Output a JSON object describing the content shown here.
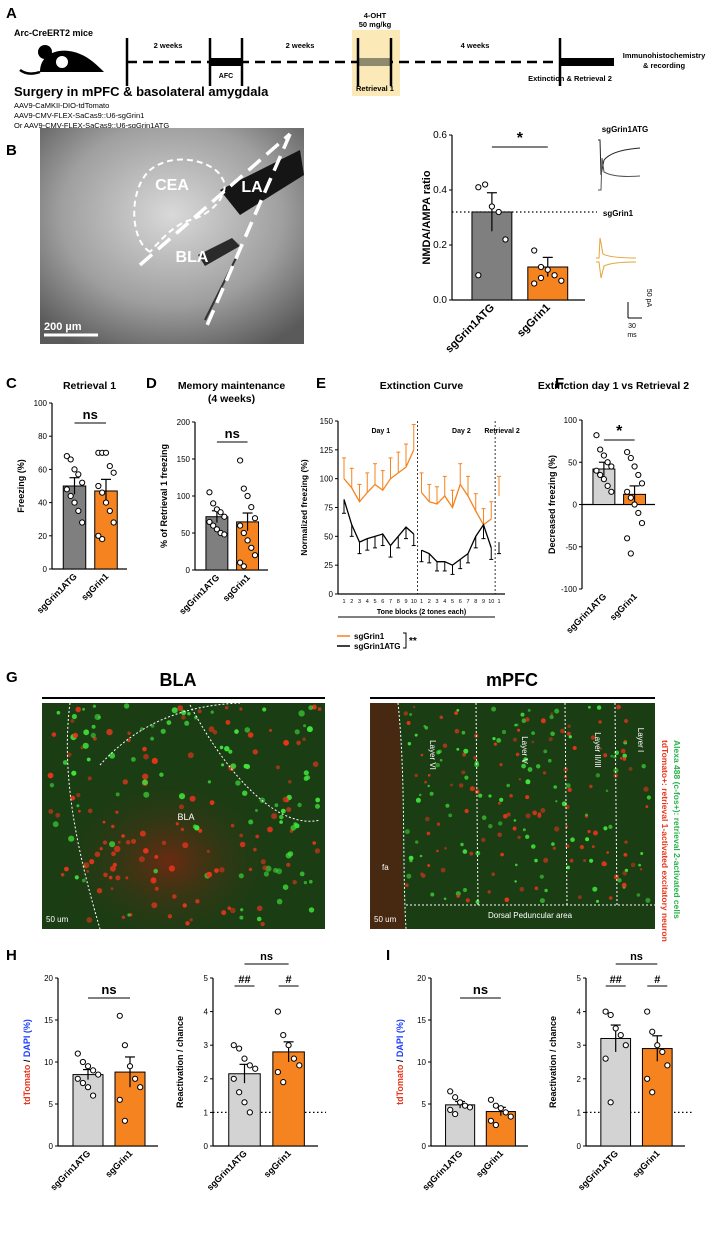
{
  "panel_letters": [
    "A",
    "B",
    "C",
    "D",
    "E",
    "F",
    "G",
    "H",
    "I"
  ],
  "A": {
    "mouse_label": "Arc-CreERT2 mice",
    "surgery_title": "Surgery in mPFC & basolateral amygdala",
    "viruses": [
      "AAV9-CaMKII-DIO-tdTomato",
      "AAV9-CMV-FLEX-SaCas9::U6-sgGrin1",
      "Or AAV9-CMV-FLEX-SaCas9::U6-sgGrin1ATG"
    ],
    "interval_1": "2 weeks",
    "interval_2": "2 weeks",
    "interval_3": "4 weeks",
    "afc": "AFC",
    "ohtt_line1": "4-OHT",
    "ohtt_line2": "50 mg/kg",
    "retrieval1": "Retrieval 1",
    "extinction": "Extinction & Retrieval 2",
    "ihc_line1": "Immunohistochemistry",
    "ihc_line2": "& recording",
    "highlight_color": "#fbe9b7"
  },
  "B": {
    "labels": [
      "CEA",
      "LA",
      "BLA"
    ],
    "scale": "200 µm",
    "trace_top_label": "sgGrin1ATG",
    "trace_bottom_label": "sgGrin1",
    "scalebar_y": "50 pA",
    "scalebar_x": "30",
    "scalebar_x_unit": "ms",
    "sig": "*"
  },
  "G": {
    "left_title": "BLA",
    "right_title": "mPFC",
    "left_region": "BLA",
    "layers": [
      "Layer VI",
      "Layer V",
      "Layer II/III",
      "Layer I"
    ],
    "fa": "fa",
    "dorsal": "Dorsal Peduncular area",
    "scale_left": "50 um",
    "scale_right": "50 um",
    "legend_red": "tdTomato+: retrieval 1-activated excitatory neuron",
    "legend_green": "Alexa 488 (c-fos+): retrieval 2-activated cells"
  },
  "groups": [
    "sgGrin1ATG",
    "sgGrin1"
  ],
  "colors": {
    "atg": "#7f7f7f",
    "atg_light": "#d3d3d3",
    "grin1": "#f5831f",
    "bla_bg": "#1b3d14",
    "red_cell": "#e8341c",
    "green_cell": "#3fe33a"
  },
  "chart_data": [
    {
      "panel": "B",
      "type": "bar",
      "title": "",
      "ylabel": "NMDA/AMPA ratio",
      "categories": [
        "sgGrin1ATG",
        "sgGrin1"
      ],
      "values": [
        0.32,
        0.12
      ],
      "errors": [
        0.07,
        0.035
      ],
      "ylim": [
        0,
        0.6
      ],
      "yticks": [
        "0.0",
        "0.2",
        "0.4",
        "0.6"
      ],
      "sig": "*",
      "chance_line": 0.32,
      "points": [
        [
          0.41,
          0.42,
          0.34,
          0.32,
          0.22,
          0.09
        ],
        [
          0.18,
          0.12,
          0.11,
          0.09,
          0.07,
          0.06,
          0.08
        ]
      ]
    },
    {
      "panel": "C",
      "type": "bar",
      "title": "Retrieval 1",
      "ylabel": "Freezing (%)",
      "categories": [
        "sgGrin1ATG",
        "sgGrin1"
      ],
      "values": [
        50,
        47
      ],
      "errors": [
        5,
        7
      ],
      "ylim": [
        0,
        100
      ],
      "yticks": [
        "0",
        "20",
        "40",
        "60",
        "80",
        "100"
      ],
      "sig": "ns",
      "points": [
        [
          68,
          66,
          60,
          57,
          52,
          48,
          44,
          40,
          35,
          28
        ],
        [
          70,
          70,
          70,
          62,
          58,
          50,
          46,
          40,
          35,
          28,
          20,
          18
        ]
      ]
    },
    {
      "panel": "D",
      "type": "bar",
      "title": "Memory maintenance",
      "subtitle": "(4 weeks)",
      "ylabel": "% of Retrieval 1 freezing",
      "categories": [
        "sgGrin1ATG",
        "sgGrin1"
      ],
      "values": [
        72,
        65
      ],
      "errors": [
        8,
        12
      ],
      "ylim": [
        0,
        200
      ],
      "yticks": [
        "0",
        "50",
        "100",
        "150",
        "200"
      ],
      "sig": "ns",
      "points": [
        [
          105,
          90,
          82,
          78,
          72,
          65,
          60,
          55,
          50,
          48
        ],
        [
          148,
          110,
          100,
          85,
          70,
          60,
          50,
          40,
          30,
          20,
          10,
          5
        ]
      ]
    },
    {
      "panel": "E",
      "type": "line",
      "title": "Extinction Curve",
      "ylabel": "Normalized freezing (%)",
      "xlabel": "Tone blocks  (2 tones each)",
      "ylim": [
        0,
        150
      ],
      "yticks": [
        "0",
        "25",
        "50",
        "75",
        "100",
        "125",
        "150"
      ],
      "xticks": [
        "1",
        "2",
        "3",
        "4",
        "5",
        "6",
        "7",
        "8",
        "9",
        "10",
        "1",
        "2",
        "3",
        "4",
        "5",
        "6",
        "7",
        "8",
        "9",
        "10",
        "1"
      ],
      "day_labels": [
        "Day 1",
        "Day 2",
        "Retrieval 2"
      ],
      "sig": "**",
      "series": [
        {
          "name": "sgGrin1",
          "values": [
            100,
            92,
            80,
            88,
            95,
            90,
            100,
            105,
            110,
            125,
            88,
            80,
            78,
            85,
            75,
            95,
            85,
            72,
            60,
            65,
            85
          ],
          "errors": [
            18,
            17,
            15,
            17,
            18,
            17,
            18,
            18,
            20,
            22,
            17,
            15,
            15,
            17,
            15,
            18,
            17,
            15,
            14,
            15,
            17
          ]
        },
        {
          "name": "sgGrin1ATG",
          "values": [
            82,
            60,
            45,
            48,
            50,
            52,
            42,
            50,
            58,
            52,
            38,
            35,
            28,
            28,
            25,
            30,
            35,
            50,
            60,
            40,
            45
          ],
          "errors": [
            12,
            10,
            10,
            10,
            10,
            10,
            10,
            10,
            10,
            10,
            10,
            8,
            8,
            8,
            8,
            8,
            8,
            10,
            12,
            10,
            10
          ]
        }
      ]
    },
    {
      "panel": "F",
      "type": "bar",
      "title": "Extinction day 1 vs Retrieval 2",
      "ylabel": "Decreased freezing (%)",
      "categories": [
        "sgGrin1ATG",
        "sgGrin1"
      ],
      "values": [
        42,
        12
      ],
      "errors": [
        8,
        10
      ],
      "ylim": [
        -100,
        100
      ],
      "yticks": [
        "-100",
        "-50",
        "0",
        "50",
        "100"
      ],
      "sig": "*",
      "points": [
        [
          82,
          65,
          58,
          50,
          45,
          40,
          35,
          30,
          22,
          15
        ],
        [
          62,
          55,
          45,
          35,
          25,
          15,
          8,
          0,
          -10,
          -22,
          -40,
          -58
        ]
      ]
    },
    {
      "panel": "H",
      "type": "bar",
      "title": "",
      "ylabel": "tdTomato / DAPI (%)",
      "categories": [
        "sgGrin1ATG",
        "sgGrin1"
      ],
      "values": [
        8.5,
        8.8
      ],
      "errors": [
        0.6,
        1.8
      ],
      "ylim": [
        0,
        20
      ],
      "yticks": [
        "0",
        "5",
        "10",
        "15",
        "20"
      ],
      "sig": "ns",
      "points": [
        [
          11,
          10,
          9.5,
          9,
          8.5,
          8,
          7.5,
          7,
          6
        ],
        [
          15.5,
          12,
          9.5,
          8,
          7,
          5.5,
          3
        ]
      ]
    },
    {
      "panel": "H",
      "type": "bar",
      "title": "",
      "ylabel": "Reactivation / chance",
      "categories": [
        "sgGrin1ATG",
        "sgGrin1"
      ],
      "values": [
        2.15,
        2.8
      ],
      "errors": [
        0.28,
        0.3
      ],
      "ylim": [
        0,
        5
      ],
      "yticks": [
        "0",
        "1",
        "2",
        "3",
        "4",
        "5"
      ],
      "sig": "ns",
      "sig_pair": [
        "##",
        "#"
      ],
      "chance_line": 1,
      "points": [
        [
          3.0,
          2.9,
          2.6,
          2.4,
          2.3,
          2.0,
          1.6,
          1.3,
          1.0
        ],
        [
          4.0,
          3.3,
          3.0,
          2.6,
          2.4,
          2.2,
          1.9
        ]
      ]
    },
    {
      "panel": "I",
      "type": "bar",
      "title": "",
      "ylabel": "tdTomato / DAPI (%)",
      "categories": [
        "sgGrin1ATG",
        "sgGrin1"
      ],
      "values": [
        4.9,
        4.1
      ],
      "errors": [
        0.4,
        0.5
      ],
      "ylim": [
        0,
        20
      ],
      "yticks": [
        "0",
        "5",
        "10",
        "15",
        "20"
      ],
      "sig": "ns",
      "points": [
        [
          6.5,
          5.8,
          5.2,
          4.8,
          4.6,
          4.3,
          3.8
        ],
        [
          5.5,
          4.8,
          4.5,
          4.0,
          3.5,
          3.0,
          2.5
        ]
      ]
    },
    {
      "panel": "I",
      "type": "bar",
      "title": "",
      "ylabel": "Reactivation / chance",
      "categories": [
        "sgGrin1ATG",
        "sgGrin1"
      ],
      "values": [
        3.2,
        2.9
      ],
      "errors": [
        0.4,
        0.38
      ],
      "ylim": [
        0,
        5
      ],
      "yticks": [
        "0",
        "1",
        "2",
        "3",
        "4",
        "5"
      ],
      "sig": "ns",
      "sig_pair": [
        "##",
        "#"
      ],
      "chance_line": 1,
      "points": [
        [
          4.0,
          3.9,
          3.5,
          3.3,
          3.0,
          2.6,
          1.3
        ],
        [
          4.0,
          3.4,
          3.0,
          2.8,
          2.4,
          2.0,
          1.6
        ]
      ]
    }
  ]
}
